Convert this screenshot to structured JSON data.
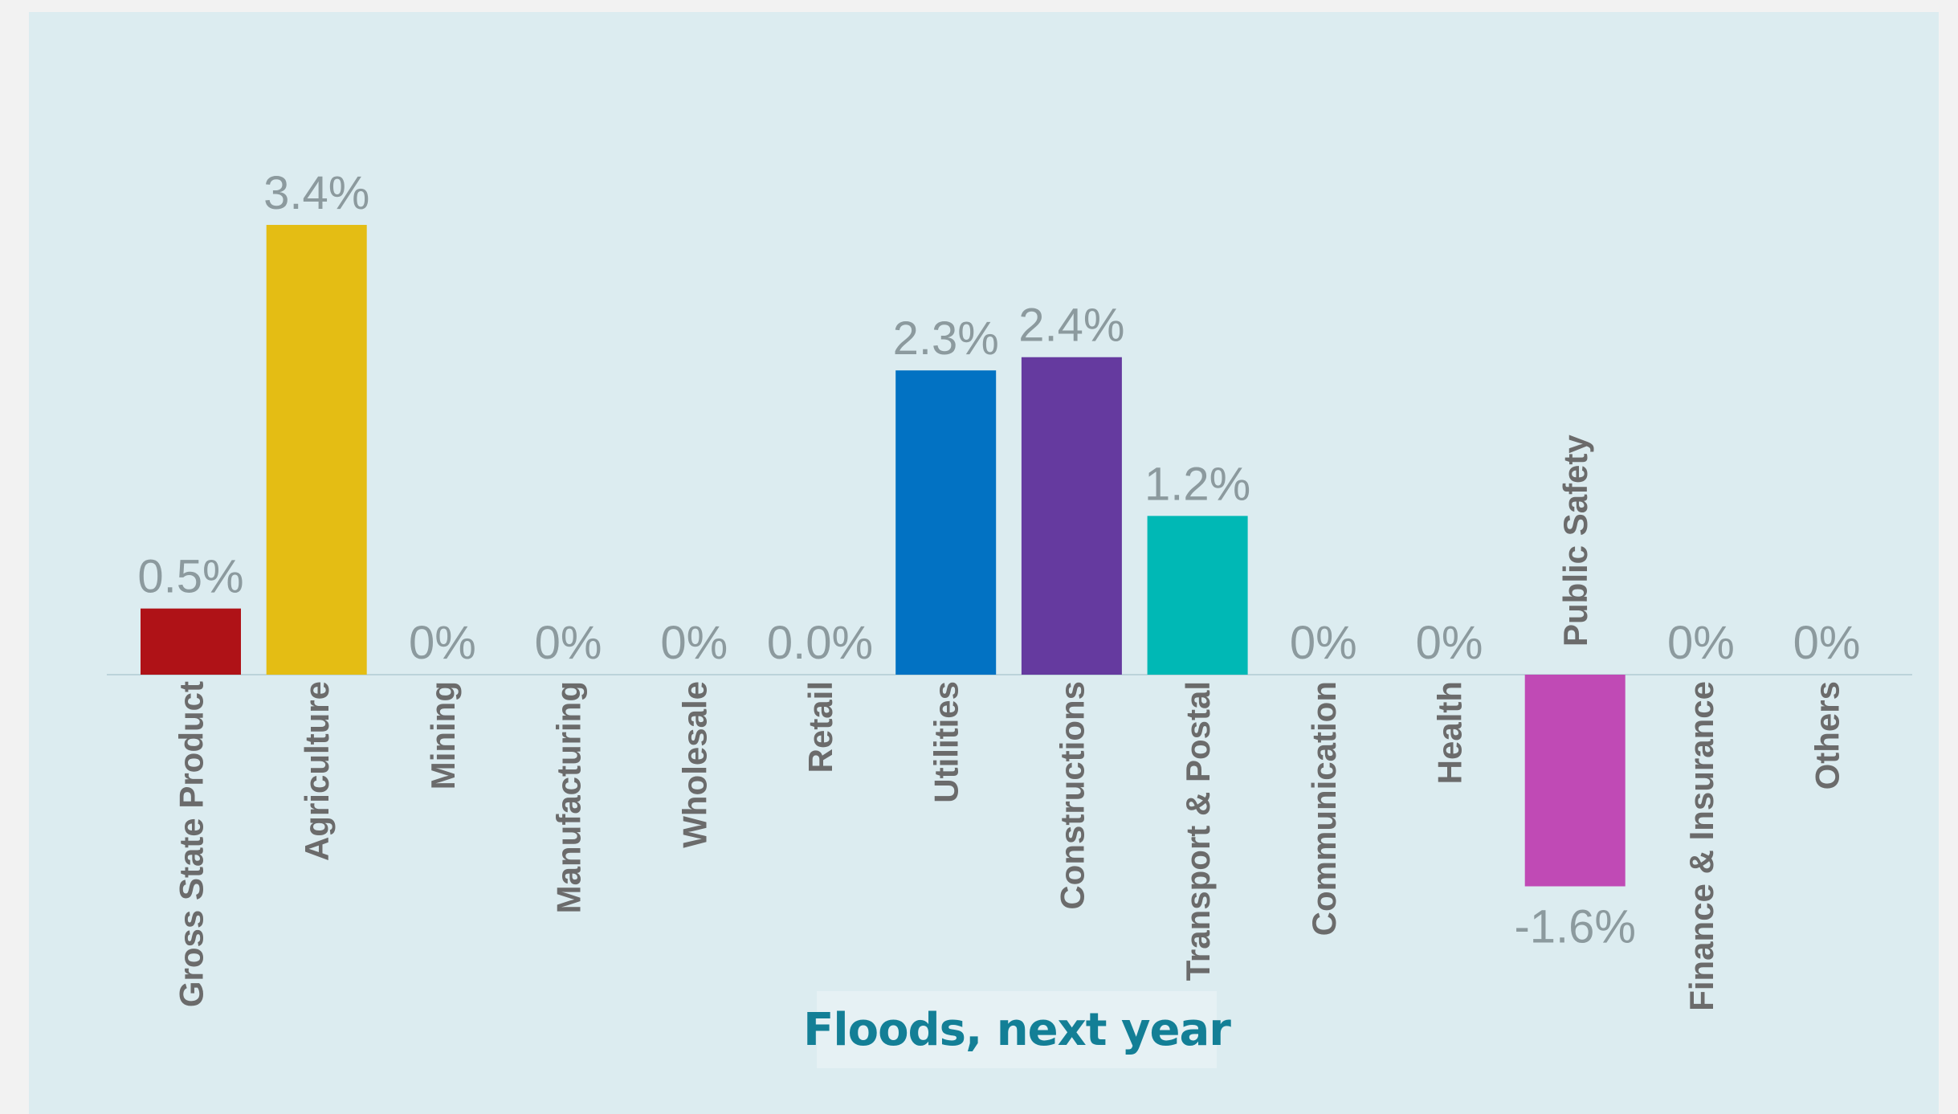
{
  "chart_data": {
    "type": "bar",
    "title": "Floods, next year",
    "xlabel": "",
    "ylabel": "",
    "ylim": [
      -2.0,
      4.0
    ],
    "grid": false,
    "legend": "none",
    "categories": [
      "Gross State Product",
      "Agriculture",
      "Mining",
      "Manufacturing",
      "Wholesale",
      "Retail",
      "Utilities",
      "Constructions",
      "Transport & Postal",
      "Communication",
      "Health",
      "Public Safety",
      "Finance & Insurance",
      "Others"
    ],
    "values": [
      0.5,
      3.4,
      0,
      0,
      0,
      0.0,
      2.3,
      2.4,
      1.2,
      0,
      0,
      -1.6,
      0,
      0
    ],
    "value_labels": [
      "0.5%",
      "3.4%",
      "0%",
      "0%",
      "0%",
      "0.0%",
      "2.3%",
      "2.4%",
      "1.2%",
      "0%",
      "0%",
      "-1.6%",
      "0%",
      "0%"
    ],
    "colors": [
      "#af1217",
      "#e4bd14",
      "#0272c3",
      "#0272c3",
      "#0272c3",
      "#0272c3",
      "#0272c3",
      "#653a9f",
      "#00b8b5",
      "#0272c3",
      "#0272c3",
      "#c04ab5",
      "#0272c3",
      "#0272c3"
    ]
  }
}
